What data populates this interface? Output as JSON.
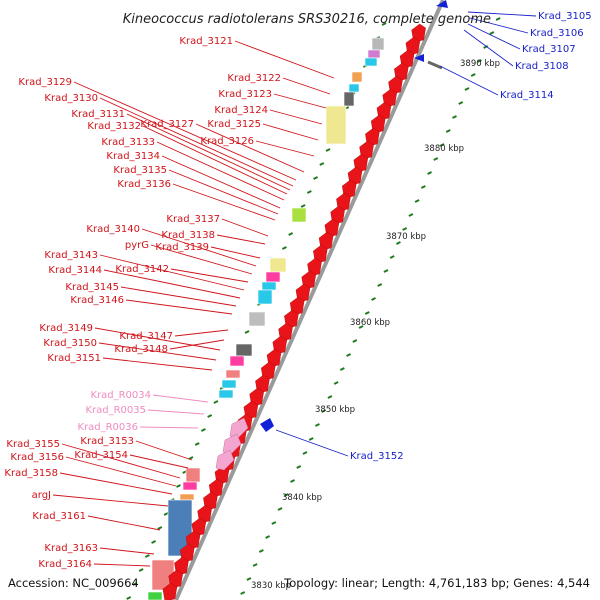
{
  "title": "Kineococcus radiotolerans SRS30216, complete genome",
  "accession": "Accession: NC_009664",
  "topology": "Topology: linear; Length: 4,761,183 bp; Genes: 4,544",
  "colors": {
    "gene": "#e8141a",
    "rna": "#f3a6cf",
    "reverse": "#1220d8",
    "label_red": "#d0141a",
    "label_blue": "#1a22c8",
    "label_pink": "#f08cc0",
    "tick": "#1e7a1e"
  },
  "kbp_marks": [
    "3890 kbp",
    "3880 kbp",
    "3870 kbp",
    "3860 kbp",
    "3850 kbp",
    "3840 kbp",
    "3830 kbp"
  ],
  "left_labels": [
    {
      "text": "Krad_3121",
      "type": "red"
    },
    {
      "text": "Krad_3122",
      "type": "red"
    },
    {
      "text": "Krad_3123",
      "type": "red"
    },
    {
      "text": "Krad_3124",
      "type": "red"
    },
    {
      "text": "Krad_3125",
      "type": "red"
    },
    {
      "text": "Krad_3126",
      "type": "red"
    },
    {
      "text": "Krad_3127",
      "type": "red"
    },
    {
      "text": "Krad_3129",
      "type": "red"
    },
    {
      "text": "Krad_3130",
      "type": "red"
    },
    {
      "text": "Krad_3131",
      "type": "red"
    },
    {
      "text": "Krad_3132",
      "type": "red"
    },
    {
      "text": "Krad_3133",
      "type": "red"
    },
    {
      "text": "Krad_3134",
      "type": "red"
    },
    {
      "text": "Krad_3135",
      "type": "red"
    },
    {
      "text": "Krad_3136",
      "type": "red"
    },
    {
      "text": "Krad_3137",
      "type": "red"
    },
    {
      "text": "Krad_3138",
      "type": "red"
    },
    {
      "text": "Krad_3139",
      "type": "red"
    },
    {
      "text": "Krad_3140",
      "type": "red"
    },
    {
      "text": "pyrG",
      "type": "red"
    },
    {
      "text": "Krad_3142",
      "type": "red"
    },
    {
      "text": "Krad_3143",
      "type": "red"
    },
    {
      "text": "Krad_3144",
      "type": "red"
    },
    {
      "text": "Krad_3145",
      "type": "red"
    },
    {
      "text": "Krad_3146",
      "type": "red"
    },
    {
      "text": "Krad_3147",
      "type": "red"
    },
    {
      "text": "Krad_3148",
      "type": "red"
    },
    {
      "text": "Krad_3149",
      "type": "red"
    },
    {
      "text": "Krad_3150",
      "type": "red"
    },
    {
      "text": "Krad_3151",
      "type": "red"
    },
    {
      "text": "Krad_R0034",
      "type": "pink"
    },
    {
      "text": "Krad_R0035",
      "type": "pink"
    },
    {
      "text": "Krad_R0036",
      "type": "pink"
    },
    {
      "text": "Krad_3153",
      "type": "red"
    },
    {
      "text": "Krad_3154",
      "type": "red"
    },
    {
      "text": "Krad_3155",
      "type": "red"
    },
    {
      "text": "Krad_3156",
      "type": "red"
    },
    {
      "text": "Krad_3158",
      "type": "red"
    },
    {
      "text": "argJ",
      "type": "red"
    },
    {
      "text": "Krad_3161",
      "type": "red"
    },
    {
      "text": "Krad_3163",
      "type": "red"
    },
    {
      "text": "Krad_3164",
      "type": "red"
    }
  ],
  "right_labels": [
    {
      "text": "Krad_3105"
    },
    {
      "text": "Krad_3106"
    },
    {
      "text": "Krad_3107"
    },
    {
      "text": "Krad_3108"
    },
    {
      "text": "Krad_3114"
    },
    {
      "text": "Krad_3152"
    }
  ]
}
